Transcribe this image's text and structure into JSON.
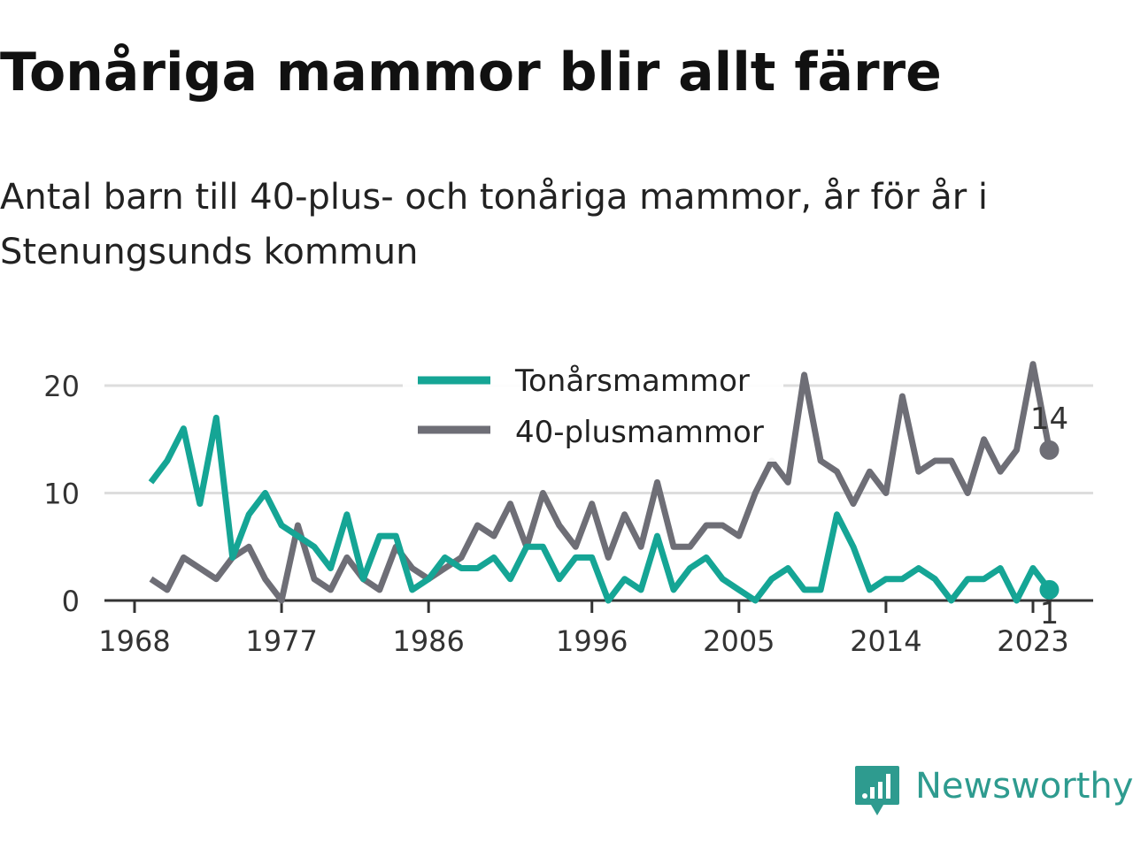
{
  "title": "Tonåriga mammor blir allt färre",
  "subtitle": "Antal barn till 40-plus- och tonåriga mammor, år för år i Stenungsunds kommun",
  "brand": {
    "name": "Newsworthy",
    "icon": "newsworthy-logo-icon"
  },
  "colors": {
    "teal": "#15a595",
    "gray": "#6e6e76",
    "grid": "#dddddd",
    "axis": "#333333"
  },
  "chart_data": {
    "type": "line",
    "title": "Tonåriga mammor blir allt färre",
    "subtitle": "Antal barn till 40-plus- och tonåriga mammor, år för år i Stenungsunds kommun",
    "xlabel": "",
    "ylabel": "",
    "xlim": [
      1968,
      2024
    ],
    "ylim": [
      0,
      22
    ],
    "x_ticks": [
      1968,
      1977,
      1986,
      1996,
      2005,
      2014,
      2023
    ],
    "y_ticks": [
      0,
      10,
      20
    ],
    "grid": "horizontal",
    "legend_position": "top-center",
    "x": [
      1969,
      1970,
      1971,
      1972,
      1973,
      1974,
      1975,
      1976,
      1977,
      1978,
      1979,
      1980,
      1981,
      1982,
      1983,
      1984,
      1985,
      1986,
      1987,
      1988,
      1989,
      1990,
      1991,
      1992,
      1993,
      1994,
      1995,
      1996,
      1997,
      1998,
      1999,
      2000,
      2001,
      2002,
      2003,
      2004,
      2005,
      2006,
      2007,
      2008,
      2009,
      2010,
      2011,
      2012,
      2013,
      2014,
      2015,
      2016,
      2017,
      2018,
      2019,
      2020,
      2021,
      2022,
      2023,
      2024
    ],
    "series": [
      {
        "name": "Tonårsmammor",
        "color": "#15a595",
        "values": [
          11,
          13,
          16,
          9,
          17,
          4,
          8,
          10,
          7,
          6,
          5,
          3,
          8,
          2,
          6,
          6,
          1,
          2,
          4,
          3,
          3,
          4,
          2,
          5,
          5,
          2,
          4,
          4,
          0,
          2,
          1,
          6,
          1,
          3,
          4,
          2,
          1,
          0,
          2,
          3,
          1,
          1,
          8,
          5,
          1,
          2,
          2,
          3,
          2,
          0,
          2,
          2,
          3,
          0,
          3,
          1
        ],
        "end_label": "1"
      },
      {
        "name": "40-plusmammor",
        "color": "#6e6e76",
        "values": [
          2,
          1,
          4,
          3,
          2,
          4,
          5,
          2,
          0,
          7,
          2,
          1,
          4,
          2,
          1,
          5,
          3,
          2,
          3,
          4,
          7,
          6,
          9,
          5,
          10,
          7,
          5,
          9,
          4,
          8,
          5,
          11,
          5,
          5,
          7,
          7,
          6,
          10,
          13,
          11,
          21,
          13,
          12,
          9,
          12,
          10,
          19,
          12,
          13,
          13,
          10,
          15,
          12,
          14,
          22,
          14
        ],
        "end_label": "14"
      }
    ]
  }
}
